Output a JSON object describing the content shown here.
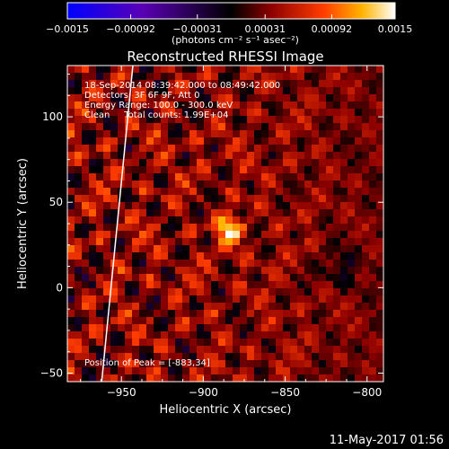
{
  "chart_data": {
    "type": "heatmap",
    "title": "Reconstructed RHESSI Image",
    "xlabel": "Heliocentric X (arcsec)",
    "ylabel": "Heliocentric Y (arcsec)",
    "xlim": [
      -983,
      -790
    ],
    "ylim": [
      -55,
      130
    ],
    "xticks": [
      -950,
      -900,
      -850,
      -800
    ],
    "xtick_labels": [
      "−950",
      "−900",
      "−850",
      "−800"
    ],
    "yticks": [
      -50,
      0,
      50,
      100
    ],
    "ytick_labels": [
      "−50",
      "0",
      "50",
      "100"
    ],
    "colorbar": {
      "min": -0.0015,
      "max": 0.0015,
      "ticks": [
        -0.0015,
        -0.00092,
        -0.00031,
        0.00031,
        0.00092,
        0.0015
      ],
      "tick_labels": [
        "−0.0015",
        "−0.00092",
        "−0.00031",
        "0.00031",
        "0.00092",
        "0.0015"
      ],
      "unit_label": "(photons cm⁻² s⁻¹ asec⁻²)"
    },
    "peak": {
      "x": -883,
      "y": 34
    },
    "limb_points": [
      [
        -962,
        -55
      ],
      [
        -943,
        130
      ]
    ]
  },
  "annotations": {
    "time_range": "18-Sep-2014 08:39:42.000 to 08:49:42.000",
    "detectors": "Detectors: 3F 6F 9F, Att 0",
    "energy": "Energy Range: 100.0 - 300.0 keV",
    "clean": "Clean     Total counts: 1.99E+04",
    "peak_text": "Position of Peak = [-883,34]"
  },
  "footer_date": "11-May-2017 01:56",
  "colors": {
    "background": "#000000",
    "text": "#ffffff",
    "limb": "#ffffff"
  }
}
